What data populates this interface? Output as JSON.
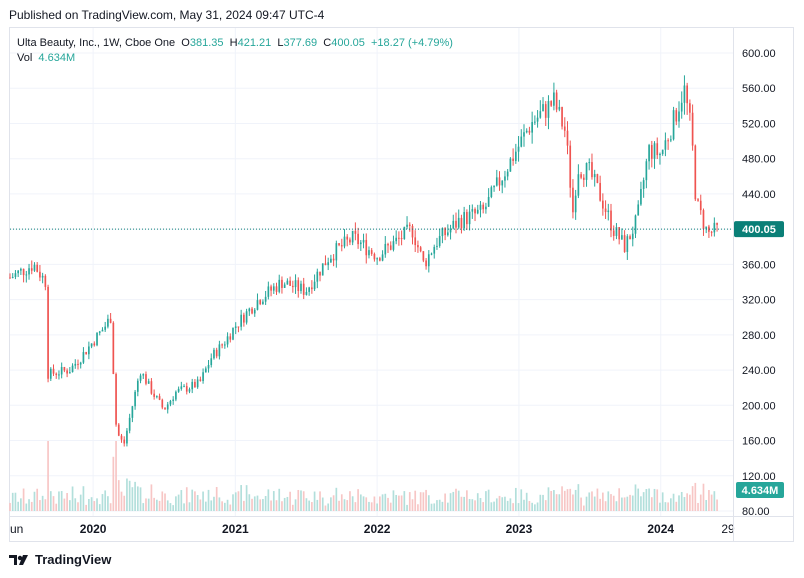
{
  "header": {
    "published": "Published on TradingView.com, May 31, 2024 09:47 UTC-4"
  },
  "legend": {
    "symbol": "Ulta Beauty, Inc., 1W, Cboe One",
    "o_label": "O",
    "o": "381.35",
    "h_label": "H",
    "h": "421.21",
    "l_label": "L",
    "l": "377.69",
    "c_label": "C",
    "c": "400.05",
    "change": "+18.27 (+4.79%)",
    "vol_label": "Vol",
    "vol": "4.634M"
  },
  "brand": {
    "name": "TradingView"
  },
  "colors": {
    "up": "#26a69a",
    "down": "#ef5350",
    "last_price_bg": "#0a7f77",
    "vol_up": "#b2dfdb",
    "vol_down": "#f7c6c5"
  },
  "chart_data": {
    "type": "candlestick",
    "interval": "1W",
    "ylim": [
      80,
      600
    ],
    "y_ticks": [
      "600.00",
      "560.00",
      "520.00",
      "480.00",
      "440.00",
      "400.00",
      "360.00",
      "320.00",
      "280.00",
      "240.00",
      "200.00",
      "160.00",
      "120.00",
      "80.00"
    ],
    "x_ticks": [
      "Jun",
      "2020",
      "2021",
      "2022",
      "2023",
      "2024",
      "29"
    ],
    "last_price": "400.05",
    "last_volume": "4.634M",
    "grid": true,
    "price_path": [
      [
        "2019-06",
        345
      ],
      [
        "2019-08",
        360
      ],
      [
        "2019-09",
        340
      ],
      [
        "2019-09-01",
        235
      ],
      [
        "2019-11",
        240
      ],
      [
        "2019-12",
        255
      ],
      [
        "2020-02",
        290
      ],
      [
        "2020-02-15",
        300
      ],
      [
        "2020-03",
        170
      ],
      [
        "2020-03-20",
        155
      ],
      [
        "2020-05",
        240
      ],
      [
        "2020-06",
        215
      ],
      [
        "2020-07",
        195
      ],
      [
        "2020-08",
        215
      ],
      [
        "2020-10",
        225
      ],
      [
        "2020-11",
        255
      ],
      [
        "2020-12",
        270
      ],
      [
        "2021-01",
        290
      ],
      [
        "2021-03",
        320
      ],
      [
        "2021-05",
        340
      ],
      [
        "2021-07",
        330
      ],
      [
        "2021-09",
        370
      ],
      [
        "2021-10",
        380
      ],
      [
        "2021-11",
        390
      ],
      [
        "2021-12",
        380
      ],
      [
        "2022-01",
        370
      ],
      [
        "2022-02",
        380
      ],
      [
        "2022-04",
        400
      ],
      [
        "2022-05",
        360
      ],
      [
        "2022-06",
        385
      ],
      [
        "2022-08",
        410
      ],
      [
        "2022-10",
        420
      ],
      [
        "2022-12",
        470
      ],
      [
        "2023-02",
        520
      ],
      [
        "2023-04",
        545
      ],
      [
        "2023-05",
        510
      ],
      [
        "2023-05-20",
        420
      ],
      [
        "2023-06",
        470
      ],
      [
        "2023-07",
        465
      ],
      [
        "2023-08",
        435
      ],
      [
        "2023-09",
        400
      ],
      [
        "2023-10",
        380
      ],
      [
        "2023-11",
        410
      ],
      [
        "2023-12",
        490
      ],
      [
        "2024-01",
        485
      ],
      [
        "2024-02",
        520
      ],
      [
        "2024-03",
        560
      ],
      [
        "2024-03-20",
        510
      ],
      [
        "2024-04",
        430
      ],
      [
        "2024-05",
        395
      ],
      [
        "2024-05-31",
        400.05
      ]
    ]
  }
}
